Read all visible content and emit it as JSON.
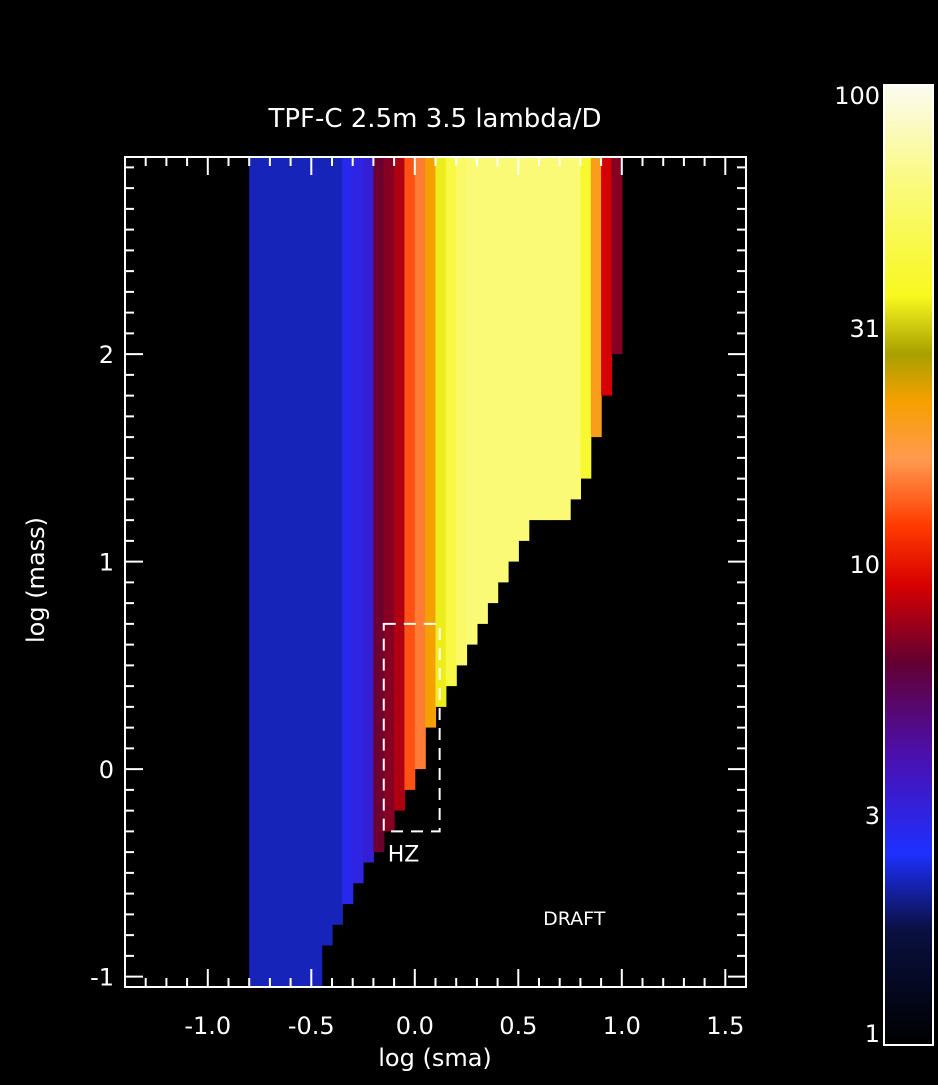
{
  "chart_data": {
    "type": "heatmap",
    "title": "TPF-C 2.5m 3.5 lambda/D",
    "xlabel": "log (sma)",
    "ylabel": "log (mass)",
    "xlim": [
      -1.4,
      1.6
    ],
    "ylim": [
      -1.05,
      2.95
    ],
    "xticks": [
      "-1.0",
      "-0.5",
      "0.0",
      "0.5",
      "1.0",
      "1.5"
    ],
    "xtick_values": [
      -1.0,
      -0.5,
      0.0,
      0.5,
      1.0,
      1.5
    ],
    "yticks": [
      "-1",
      "0",
      "1",
      "2"
    ],
    "ytick_values": [
      -1,
      0,
      1,
      2
    ],
    "annotations": {
      "hz": "HZ",
      "draft": "DRAFT"
    },
    "hz_box": {
      "x": [
        -0.15,
        0.12
      ],
      "y": [
        -0.3,
        0.7
      ]
    },
    "colorbar": {
      "scale": "log",
      "range": [
        1,
        100
      ],
      "ticks": [
        "100",
        "31",
        "10",
        "3",
        "1"
      ],
      "tick_values": [
        100,
        31,
        10,
        3,
        1
      ]
    },
    "grid": {
      "x_start": -0.8,
      "dx": 0.05,
      "y_start": -1.05,
      "dy": 0.1,
      "columns": [
        {
          "v": 2.2,
          "ymin": -1.05
        },
        {
          "v": 2.2,
          "ymin": -1.05
        },
        {
          "v": 2.2,
          "ymin": -1.05
        },
        {
          "v": 2.2,
          "ymin": -1.05
        },
        {
          "v": 2.2,
          "ymin": -1.05
        },
        {
          "v": 2.2,
          "ymin": -1.05
        },
        {
          "v": 2.2,
          "ymin": -1.05
        },
        {
          "v": 2.2,
          "ymin": -0.85
        },
        {
          "v": 2.2,
          "ymin": -0.75
        },
        {
          "v": 2.8,
          "ymin": -0.65
        },
        {
          "v": 3.0,
          "ymin": -0.55
        },
        {
          "v": 3.2,
          "ymin": -0.45
        },
        {
          "v": 6.5,
          "ymin": -0.4
        },
        {
          "v": 7.0,
          "ymin": -0.3
        },
        {
          "v": 8.0,
          "ymin": -0.2
        },
        {
          "v": 13.0,
          "ymin": -0.1
        },
        {
          "v": 15.0,
          "ymin": 0.0
        },
        {
          "v": 22.0,
          "ymin": 0.2
        },
        {
          "v": 35.0,
          "ymin": 0.3
        },
        {
          "v": 45.0,
          "ymin": 0.4
        },
        {
          "v": 55.0,
          "ymin": 0.5
        },
        {
          "v": 60.0,
          "ymin": 0.6
        },
        {
          "v": 60.0,
          "ymin": 0.7
        },
        {
          "v": 60.0,
          "ymin": 0.8
        },
        {
          "v": 60.0,
          "ymin": 0.9
        },
        {
          "v": 60.0,
          "ymin": 1.0
        },
        {
          "v": 60.0,
          "ymin": 1.1
        },
        {
          "v": 60.0,
          "ymin": 1.2
        },
        {
          "v": 60.0,
          "ymin": 1.2
        },
        {
          "v": 60.0,
          "ymin": 1.2
        },
        {
          "v": 60.0,
          "ymin": 1.2
        },
        {
          "v": 60.0,
          "ymin": 1.3
        },
        {
          "v": 40.0,
          "ymin": 1.4
        },
        {
          "v": 20.0,
          "ymin": 1.6
        },
        {
          "v": 9.0,
          "ymin": 1.8
        },
        {
          "v": 7.0,
          "ymin": 2.0
        }
      ]
    }
  }
}
